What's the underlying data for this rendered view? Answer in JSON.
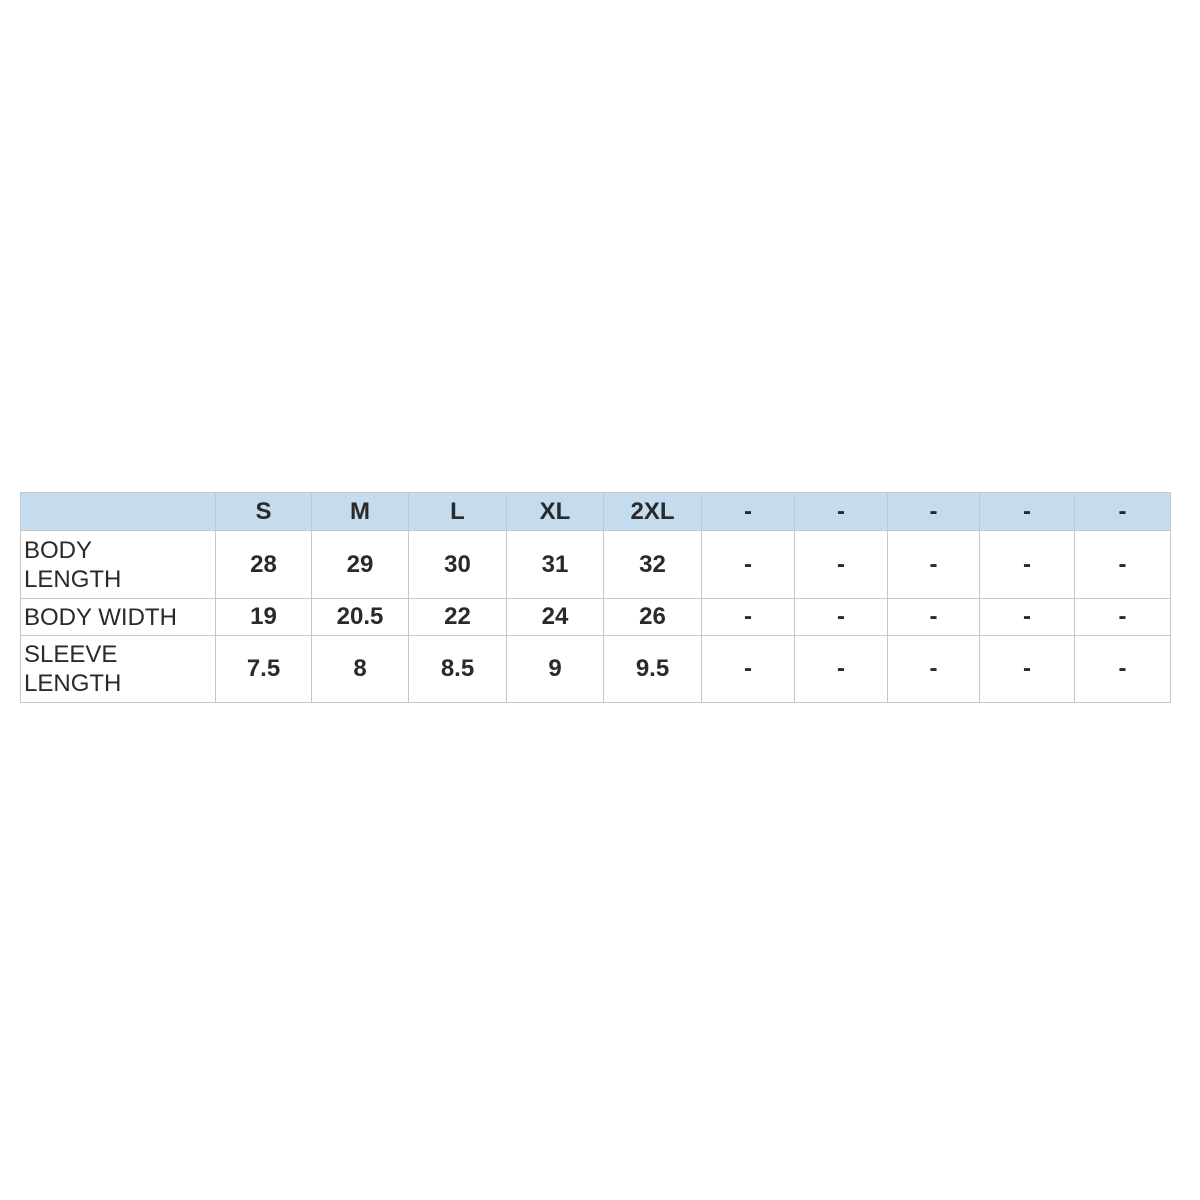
{
  "size_chart": {
    "header": [
      "",
      "S",
      "M",
      "L",
      "XL",
      "2XL",
      "-",
      "-",
      "-",
      "-",
      "-"
    ],
    "rows": [
      {
        "label": "BODY LENGTH",
        "values": [
          "28",
          "29",
          "30",
          "31",
          "32",
          "-",
          "-",
          "-",
          "-",
          "-"
        ]
      },
      {
        "label": "BODY WIDTH",
        "values": [
          "19",
          "20.5",
          "22",
          "24",
          "26",
          "-",
          "-",
          "-",
          "-",
          "-"
        ]
      },
      {
        "label": "SLEEVE LENGTH",
        "values": [
          "7.5",
          "8",
          "8.5",
          "9",
          "9.5",
          "-",
          "-",
          "-",
          "-",
          "-"
        ]
      }
    ],
    "colors": {
      "header_bg": "#c5dcee",
      "border": "#c8c8c8",
      "text": "#2a2a2a"
    }
  }
}
